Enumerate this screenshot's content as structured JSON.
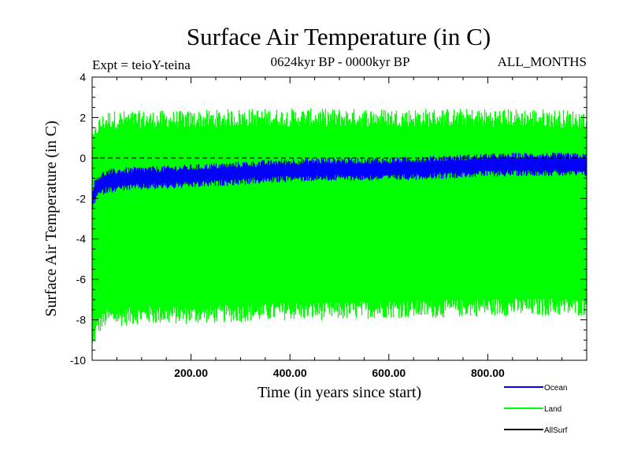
{
  "chart_data": {
    "type": "line",
    "title": "Surface Air Temperature (in C)",
    "expt_label": "Expt = teioY-teina",
    "period_label": "0624kyr BP - 0000kyr BP",
    "months_label": "ALL_MONTHS",
    "xlabel": "Time (in years since start)",
    "ylabel": "Surface Air Temperature (in C)",
    "xlim": [
      0,
      1000
    ],
    "ylim": [
      -10,
      4
    ],
    "x_ticks": [
      200,
      400,
      600,
      800
    ],
    "x_tick_labels": [
      "200.00",
      "400.00",
      "600.00",
      "800.00"
    ],
    "y_ticks": [
      4,
      2,
      0,
      -2,
      -4,
      -6,
      -8,
      -10
    ],
    "y_tick_labels": [
      "4",
      "2",
      "0",
      "-2",
      "-4",
      "-6",
      "-8",
      "-10"
    ],
    "reference_line": 0,
    "legend_position": "bottom-right",
    "series": [
      {
        "name": "Ocean",
        "color": "#0000ff",
        "x": [
          0,
          10,
          30,
          60,
          100,
          200,
          300,
          400,
          500,
          600,
          700,
          800,
          900,
          1000
        ],
        "mean": [
          -2.0,
          -1.4,
          -1.15,
          -1.05,
          -1.0,
          -0.9,
          -0.75,
          -0.6,
          -0.55,
          -0.55,
          -0.45,
          -0.35,
          -0.3,
          -0.35
        ],
        "half_range": [
          0.45,
          0.45,
          0.45,
          0.45,
          0.45,
          0.45,
          0.45,
          0.45,
          0.45,
          0.45,
          0.45,
          0.45,
          0.45,
          0.45
        ]
      },
      {
        "name": "Land",
        "color": "#00ff00",
        "x": [
          0,
          10,
          30,
          60,
          100,
          200,
          300,
          400,
          500,
          600,
          700,
          800,
          900,
          1000
        ],
        "min": [
          -9.5,
          -8.5,
          -8.0,
          -8.0,
          -7.9,
          -7.9,
          -7.8,
          -7.7,
          -7.7,
          -7.6,
          -7.6,
          -7.5,
          -7.5,
          -7.5
        ],
        "max": [
          0.5,
          1.5,
          1.9,
          1.9,
          1.9,
          1.9,
          2.0,
          2.0,
          2.0,
          2.0,
          2.0,
          2.0,
          2.0,
          1.9
        ]
      },
      {
        "name": "AllSurf",
        "color": "#000000",
        "x": [],
        "values": []
      }
    ]
  }
}
